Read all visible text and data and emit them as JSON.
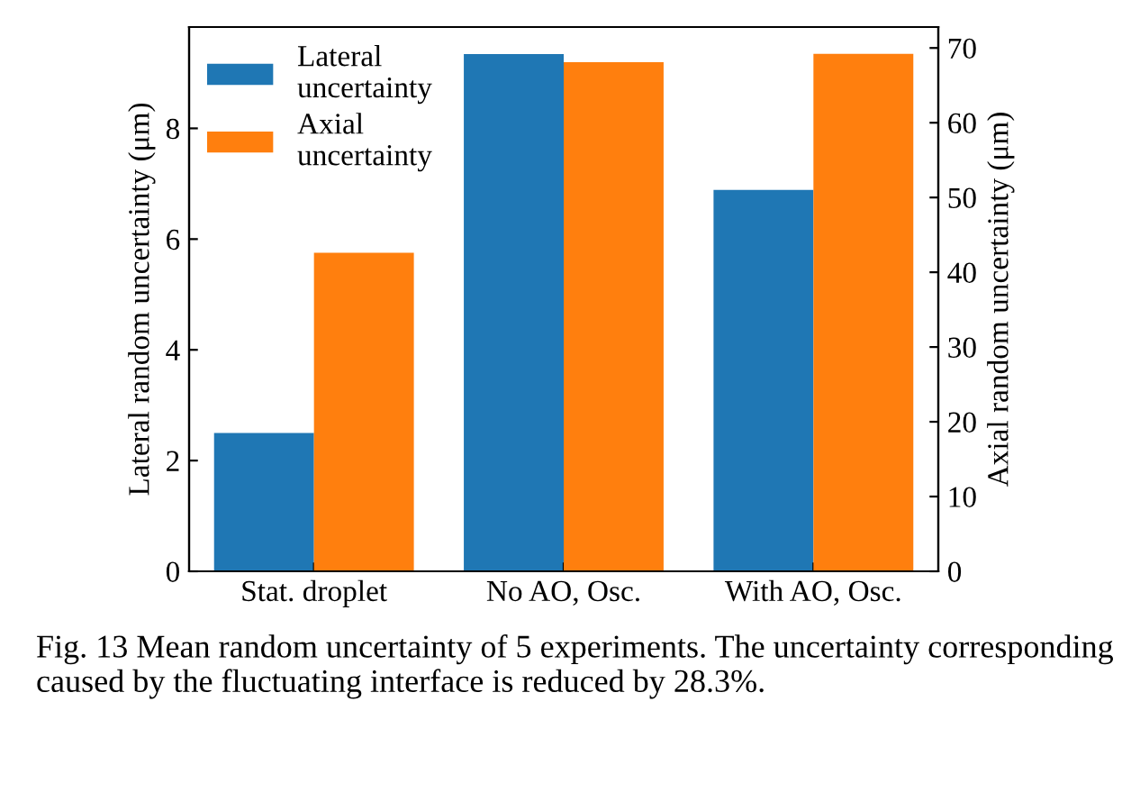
{
  "chart_data": {
    "type": "bar",
    "categories": [
      "Stat. droplet",
      "No AO, Osc.",
      "With AO, Osc."
    ],
    "series": [
      {
        "name": "Lateral\nuncertainty",
        "color": "#1f77b4",
        "values": [
          2.5,
          9.34,
          6.89
        ]
      },
      {
        "name": "Axial\nuncertainty",
        "color": "#ff7f0e",
        "values": [
          42.6,
          68.1,
          69.2
        ],
        "axis": "y2"
      }
    ],
    "ylabel": "Lateral random uncertainty (μm)",
    "y2label": "Axial random uncertainty (μm)",
    "ylim": [
      0,
      9.83
    ],
    "yticks": [
      0,
      2,
      4,
      6,
      8
    ],
    "y2lim": [
      0,
      72.8
    ],
    "y2ticks": [
      0,
      10,
      20,
      30,
      40,
      50,
      60,
      70
    ],
    "legend": "top left",
    "grid": false,
    "annotations": [
      "Fig. 13 Mean random uncertainty of 5 experiments. The uncertainty corresponding caused by the fluctuating interface is reduced by 28.3%."
    ]
  }
}
